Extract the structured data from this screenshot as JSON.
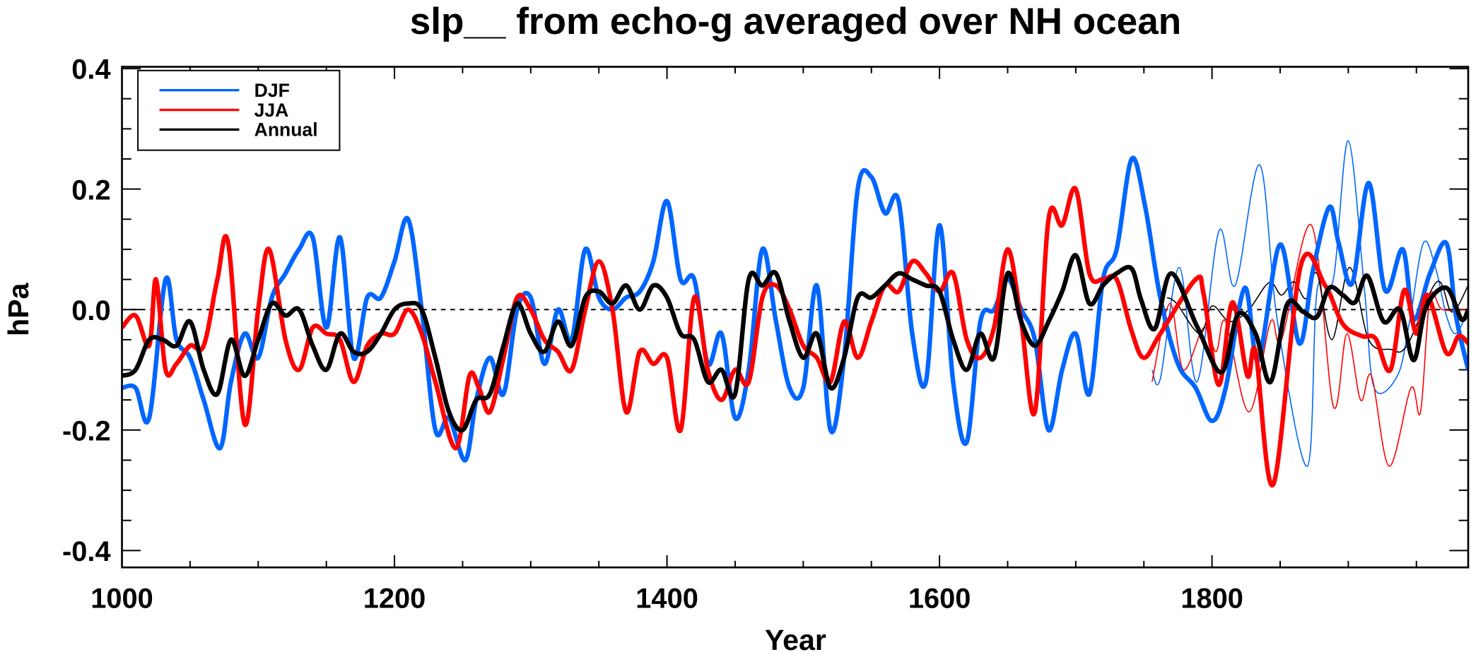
{
  "chart_data": {
    "type": "line",
    "title": "slp__ from echo-g averaged over NH ocean",
    "xlabel": "Year",
    "ylabel": "hPa",
    "xlim": [
      1000,
      1988
    ],
    "ylim": [
      -0.428,
      0.403
    ],
    "x_ticks": [
      1000,
      1200,
      1400,
      1600,
      1800
    ],
    "x_tick_labels": [
      "1000",
      "1200",
      "1400",
      "1600",
      "1800"
    ],
    "y_ticks": [
      0.4,
      0.2,
      0.0,
      -0.2,
      -0.4
    ],
    "y_tick_labels": [
      "0.4",
      "0.2",
      "0.0",
      "-0.2",
      "-0.4"
    ],
    "zero_line": "dashed",
    "legend_position": "top-left",
    "legend": [
      {
        "label": "DJF",
        "color": "#0066ff"
      },
      {
        "label": "JJA",
        "color": "#ff0000"
      },
      {
        "label": "Annual",
        "color": "#000000"
      }
    ],
    "series": [
      {
        "name": "DJF",
        "color": "#0066ff",
        "weight": "thick",
        "x": [
          1000,
          1010,
          1020,
          1032,
          1040,
          1050,
          1060,
          1072,
          1080,
          1090,
          1100,
          1110,
          1120,
          1130,
          1140,
          1150,
          1160,
          1170,
          1180,
          1190,
          1200,
          1210,
          1220,
          1230,
          1240,
          1252,
          1260,
          1270,
          1280,
          1290,
          1300,
          1310,
          1320,
          1330,
          1340,
          1350,
          1360,
          1370,
          1380,
          1390,
          1400,
          1410,
          1420,
          1430,
          1440,
          1450,
          1460,
          1470,
          1480,
          1490,
          1500,
          1510,
          1520,
          1530,
          1540,
          1550,
          1560,
          1570,
          1580,
          1590,
          1600,
          1610,
          1620,
          1630,
          1640,
          1650,
          1660,
          1670,
          1680,
          1690,
          1700,
          1710,
          1720,
          1730,
          1741,
          1751,
          1762,
          1775,
          1788,
          1800,
          1810,
          1824,
          1834,
          1850,
          1864,
          1874,
          1886,
          1893,
          1903,
          1915,
          1927,
          1940,
          1948,
          1960,
          1972,
          1979,
          1988
        ],
        "y": [
          -0.13,
          -0.13,
          -0.18,
          0.05,
          -0.05,
          -0.08,
          -0.15,
          -0.23,
          -0.12,
          -0.04,
          -0.08,
          0.02,
          0.06,
          0.1,
          0.12,
          -0.03,
          0.12,
          -0.08,
          0.02,
          0.02,
          0.08,
          0.15,
          0.0,
          -0.2,
          -0.18,
          -0.25,
          -0.15,
          -0.08,
          -0.14,
          0.0,
          0.02,
          -0.09,
          0.0,
          -0.05,
          0.1,
          0.02,
          0.0,
          0.02,
          0.03,
          0.08,
          0.18,
          0.05,
          0.05,
          -0.09,
          -0.04,
          -0.18,
          -0.1,
          0.1,
          -0.02,
          -0.13,
          -0.13,
          0.04,
          -0.2,
          -0.08,
          0.2,
          0.22,
          0.16,
          0.18,
          -0.04,
          -0.12,
          0.14,
          -0.12,
          -0.22,
          -0.02,
          0.0,
          0.05,
          0.0,
          -0.05,
          -0.2,
          -0.1,
          -0.04,
          -0.14,
          0.05,
          0.1,
          0.25,
          0.17,
          0.02,
          -0.09,
          -0.13,
          -0.185,
          -0.13,
          0.036,
          -0.084,
          0.108,
          -0.056,
          0.064,
          0.17,
          0.11,
          0.044,
          0.21,
          0.032,
          0.1,
          -0.016,
          0.06,
          0.11,
          -0.01,
          -0.1
        ]
      },
      {
        "name": "JJA",
        "color": "#ff0000",
        "weight": "thick",
        "x": [
          1000,
          1010,
          1020,
          1025,
          1032,
          1040,
          1050,
          1060,
          1070,
          1078,
          1090,
          1100,
          1108,
          1120,
          1130,
          1140,
          1150,
          1160,
          1170,
          1180,
          1190,
          1200,
          1210,
          1220,
          1230,
          1245,
          1255,
          1262,
          1270,
          1280,
          1290,
          1300,
          1310,
          1320,
          1330,
          1340,
          1350,
          1360,
          1370,
          1380,
          1390,
          1400,
          1410,
          1420,
          1430,
          1440,
          1450,
          1460,
          1470,
          1480,
          1490,
          1500,
          1510,
          1520,
          1530,
          1540,
          1550,
          1560,
          1570,
          1580,
          1590,
          1600,
          1610,
          1620,
          1630,
          1640,
          1650,
          1660,
          1670,
          1680,
          1690,
          1700,
          1710,
          1720,
          1730,
          1741,
          1750,
          1762,
          1788,
          1794,
          1805,
          1815,
          1826,
          1832,
          1845,
          1865,
          1883,
          1896,
          1910,
          1920,
          1931,
          1941,
          1950,
          1958,
          1972,
          1981,
          1988
        ],
        "y": [
          -0.03,
          -0.01,
          -0.06,
          0.05,
          -0.1,
          -0.09,
          -0.06,
          -0.06,
          0.05,
          0.11,
          -0.19,
          0.0,
          0.1,
          -0.05,
          -0.1,
          -0.03,
          -0.04,
          -0.05,
          -0.12,
          -0.06,
          -0.04,
          -0.04,
          0.0,
          -0.04,
          -0.12,
          -0.23,
          -0.11,
          -0.13,
          -0.17,
          -0.08,
          0.02,
          0.0,
          -0.05,
          -0.07,
          -0.1,
          0.0,
          0.08,
          0.0,
          -0.17,
          -0.07,
          -0.09,
          -0.08,
          -0.2,
          0.02,
          -0.1,
          -0.15,
          -0.1,
          -0.12,
          0.02,
          0.04,
          0.0,
          -0.06,
          -0.08,
          -0.12,
          -0.02,
          -0.08,
          -0.02,
          0.04,
          0.03,
          0.08,
          0.06,
          0.03,
          0.06,
          -0.05,
          -0.08,
          -0.03,
          0.1,
          -0.02,
          -0.17,
          0.15,
          0.14,
          0.2,
          0.06,
          0.05,
          0.05,
          -0.036,
          -0.08,
          -0.04,
          0.05,
          0.024,
          -0.125,
          0.012,
          -0.11,
          -0.07,
          -0.29,
          0.072,
          0.04,
          -0.024,
          -0.044,
          -0.048,
          -0.1,
          0.032,
          -0.04,
          0.024,
          -0.072,
          -0.044,
          -0.056
        ]
      },
      {
        "name": "Annual",
        "color": "#000000",
        "weight": "thick",
        "x": [
          1000,
          1010,
          1020,
          1030,
          1040,
          1050,
          1060,
          1070,
          1080,
          1090,
          1100,
          1110,
          1120,
          1130,
          1140,
          1150,
          1160,
          1170,
          1180,
          1190,
          1200,
          1210,
          1220,
          1230,
          1240,
          1250,
          1260,
          1270,
          1280,
          1290,
          1300,
          1310,
          1320,
          1330,
          1340,
          1350,
          1360,
          1370,
          1380,
          1390,
          1400,
          1410,
          1420,
          1430,
          1440,
          1450,
          1460,
          1470,
          1480,
          1490,
          1500,
          1510,
          1520,
          1530,
          1540,
          1550,
          1560,
          1570,
          1580,
          1590,
          1600,
          1610,
          1620,
          1630,
          1640,
          1650,
          1660,
          1670,
          1680,
          1690,
          1700,
          1710,
          1720,
          1730,
          1741,
          1748,
          1758,
          1770,
          1789,
          1807,
          1819,
          1832,
          1843,
          1855,
          1867,
          1877,
          1886,
          1896,
          1905,
          1914,
          1926,
          1938,
          1948,
          1957,
          1972,
          1983,
          1988
        ],
        "y": [
          -0.11,
          -0.1,
          -0.05,
          -0.05,
          -0.06,
          -0.02,
          -0.1,
          -0.14,
          -0.05,
          -0.11,
          -0.05,
          0.01,
          -0.01,
          0.0,
          -0.06,
          -0.1,
          -0.04,
          -0.07,
          -0.07,
          -0.04,
          0.0,
          0.01,
          0.0,
          -0.08,
          -0.17,
          -0.2,
          -0.15,
          -0.14,
          -0.06,
          0.01,
          -0.04,
          -0.07,
          -0.02,
          -0.06,
          0.02,
          0.03,
          0.01,
          0.04,
          0.0,
          0.04,
          0.02,
          -0.04,
          -0.05,
          -0.12,
          -0.1,
          -0.14,
          0.05,
          0.04,
          0.06,
          -0.02,
          -0.08,
          -0.04,
          -0.13,
          -0.08,
          0.02,
          0.02,
          0.04,
          0.06,
          0.05,
          0.04,
          0.03,
          -0.05,
          -0.1,
          -0.04,
          -0.08,
          0.06,
          -0.02,
          -0.06,
          -0.02,
          0.03,
          0.09,
          0.01,
          0.04,
          0.06,
          0.068,
          0.016,
          -0.032,
          0.06,
          -0.028,
          -0.104,
          -0.008,
          -0.04,
          -0.12,
          0.008,
          -0.004,
          -0.012,
          0.036,
          0.024,
          0.012,
          0.056,
          -0.02,
          0.0,
          -0.084,
          0.004,
          0.036,
          -0.016,
          0.0
        ]
      },
      {
        "name": "DJF (thin)",
        "color": "#0066ff",
        "weight": "thin",
        "x": [
          1756,
          1762,
          1776,
          1789,
          1805,
          1817,
          1835,
          1848,
          1870,
          1877,
          1889,
          1900,
          1912,
          1919,
          1936,
          1945,
          1955,
          1964,
          1972,
          1979,
          1988
        ],
        "y": [
          -0.1,
          -0.115,
          0.07,
          -0.12,
          0.13,
          0.04,
          0.24,
          -0.02,
          -0.26,
          0.03,
          0.05,
          0.28,
          0.03,
          -0.13,
          -0.11,
          -0.02,
          0.11,
          0.07,
          -0.01,
          -0.04,
          0.0
        ]
      },
      {
        "name": "JJA (thin)",
        "color": "#ff0000",
        "weight": "thin",
        "x": [
          1756,
          1769,
          1779,
          1794,
          1803,
          1810,
          1827,
          1843,
          1851,
          1873,
          1889,
          1899,
          1909,
          1917,
          1930,
          1946,
          1953,
          1960,
          1969,
          1988
        ],
        "y": [
          -0.12,
          0.01,
          -0.1,
          -0.03,
          -0.07,
          -0.02,
          -0.17,
          -0.02,
          -0.05,
          0.14,
          -0.16,
          -0.04,
          -0.15,
          -0.11,
          -0.26,
          -0.13,
          -0.17,
          0.02,
          0.0,
          0.0
        ]
      },
      {
        "name": "Annual (thin)",
        "color": "#000000",
        "weight": "thin",
        "x": [
          1767,
          1774,
          1791,
          1800,
          1813,
          1827,
          1842,
          1851,
          1860,
          1869,
          1877,
          1888,
          1901,
          1915,
          1931,
          1943,
          1965,
          1976,
          1988
        ],
        "y": [
          0.02,
          0.01,
          -0.04,
          0.006,
          -0.02,
          0.0,
          0.045,
          0.024,
          0.046,
          0.018,
          0.06,
          -0.05,
          0.07,
          -0.05,
          -0.066,
          -0.06,
          0.046,
          -0.004,
          0.04
        ]
      }
    ]
  }
}
